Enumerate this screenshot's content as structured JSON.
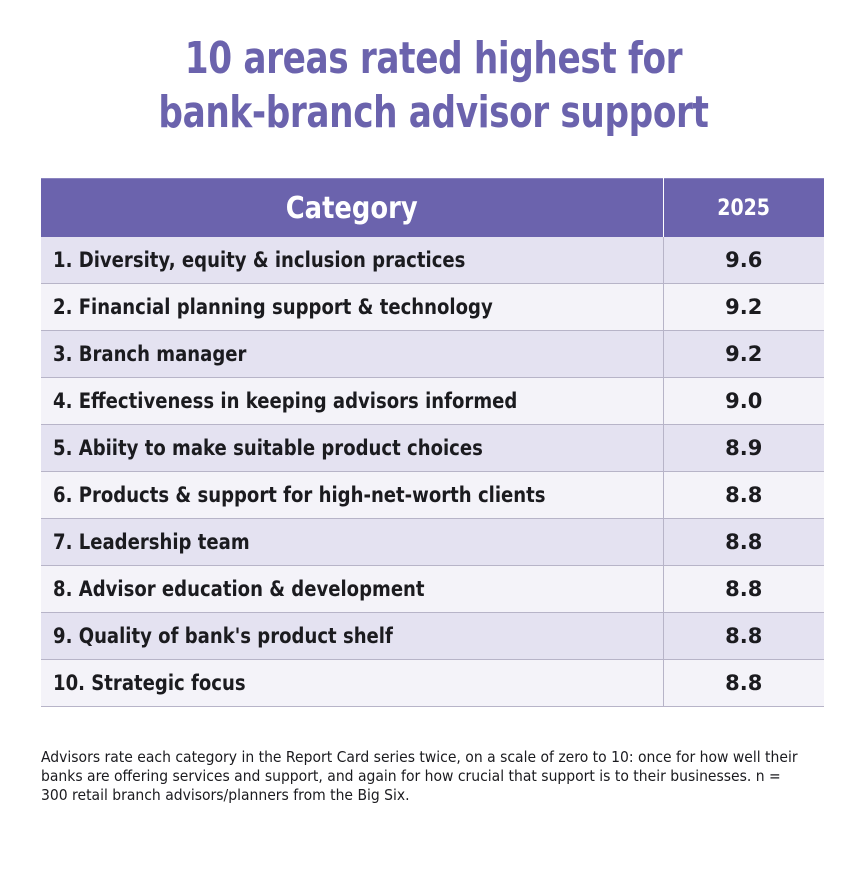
{
  "title": {
    "line1": "10 areas rated highest for",
    "line2": "bank-branch advisor support"
  },
  "chart_data": {
    "type": "table",
    "title": "10 areas rated highest for bank-branch advisor support",
    "columns": [
      "Category",
      "2025"
    ],
    "rows": [
      {
        "category": "1. Diversity, equity & inclusion practices",
        "value": "9.6"
      },
      {
        "category": "2. Financial planning support & technology",
        "value": "9.2"
      },
      {
        "category": "3. Branch manager",
        "value": "9.2"
      },
      {
        "category": "4. Effectiveness in keeping advisors informed",
        "value": "9.0"
      },
      {
        "category": "5. Abiity to make suitable product choices",
        "value": "8.9"
      },
      {
        "category": "6. Products & support for high-net-worth clients",
        "value": "8.8"
      },
      {
        "category": "7. Leadership team",
        "value": "8.8"
      },
      {
        "category": "8. Advisor education & development",
        "value": "8.8"
      },
      {
        "category": "9. Quality of bank's product shelf",
        "value": "8.8"
      },
      {
        "category": "10. Strategic focus",
        "value": "8.8"
      }
    ]
  },
  "footnote": "Advisors rate each category in the Report Card series twice, on a scale of zero to 10: once for how well their banks are offering services and support, and again for how crucial that support is to their businesses. n = 300 retail branch advisors/planners from the Big Six.",
  "colors": {
    "accent": "#6b63ad",
    "row_odd": "#e4e2f1",
    "row_even": "#f4f3f9"
  }
}
